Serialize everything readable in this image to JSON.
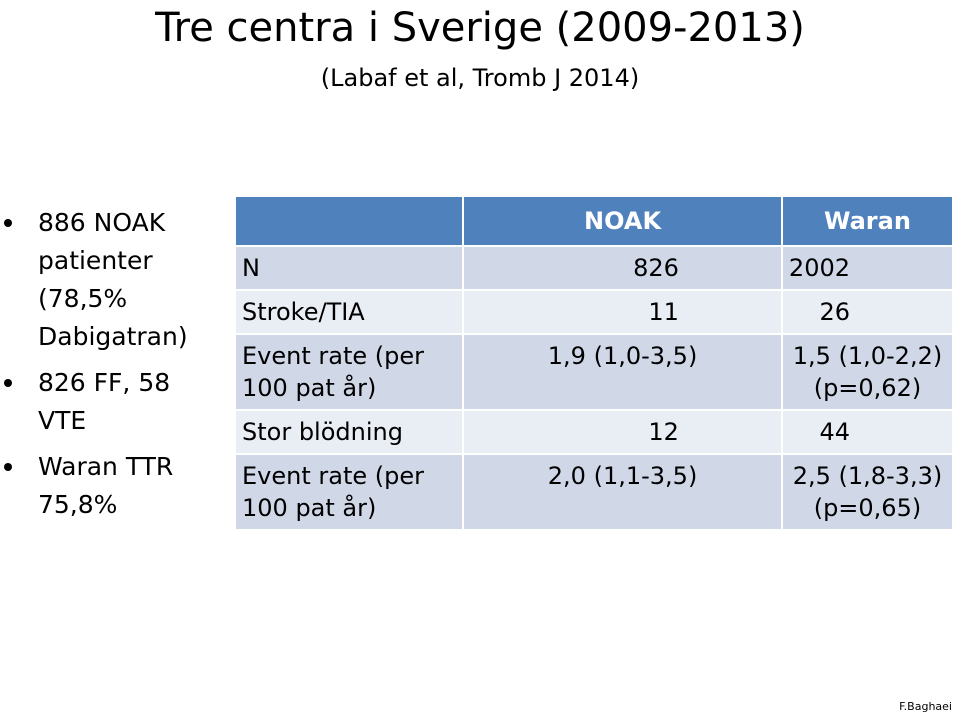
{
  "title": "Tre centra i Sverige (2009-2013)",
  "subtitle": "(Labaf et al, Tromb J 2014)",
  "bullets": [
    "886 NOAK patienter (78,5% Dabigatran)",
    "826 FF, 58 VTE",
    "Waran TTR 75,8%"
  ],
  "table": {
    "headers": [
      "",
      "NOAK",
      "Waran"
    ],
    "rows": [
      {
        "label": "N",
        "noak": "826",
        "waran": "2002"
      },
      {
        "label": "Stroke/TIA",
        "noak": "11",
        "waran": "26"
      },
      {
        "label": "Event rate (per 100 pat år)",
        "noak": "1,9 (1,0-3,5)",
        "waran": "1,5 (1,0-2,2) (p=0,62)"
      },
      {
        "label": "Stor blödning",
        "noak": "12",
        "waran": "44"
      },
      {
        "label": "Event rate (per 100 pat år)",
        "noak": "2,0 (1,1-3,5)",
        "waran": "2,5 (1,8-3,3) (p=0,65)"
      }
    ]
  },
  "credit": "F.Baghaei"
}
